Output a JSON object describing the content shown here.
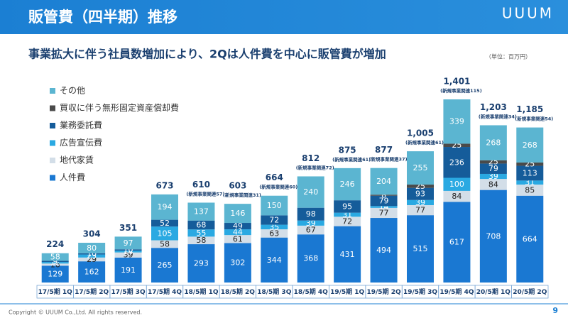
{
  "header": {
    "title": "販管費（四半期）推移",
    "logo": "UUUM"
  },
  "chart_data": {
    "type": "bar",
    "stacked": true,
    "title": "事業拡大に伴う社員数増加により、2Qは人件費を中心に販管費が増加",
    "unit_label": "（単位：百万円）",
    "categories": [
      "17/5期 1Q",
      "17/5期 2Q",
      "17/5期 3Q",
      "17/5期 4Q",
      "18/5期 1Q",
      "18/5期 2Q",
      "18/5期 3Q",
      "18/5期 4Q",
      "19/5期 1Q",
      "19/5期 2Q",
      "19/5期 3Q",
      "19/5期 4Q",
      "20/5期 1Q",
      "20/5期 2Q"
    ],
    "series": [
      {
        "name": "人件費",
        "color": "#1a78d2",
        "values": [
          129,
          162,
          191,
          265,
          293,
          302,
          344,
          368,
          431,
          494,
          515,
          617,
          708,
          664
        ]
      },
      {
        "name": "地代家賃",
        "color": "#d3dee8",
        "values": [
          16,
          29,
          39,
          58,
          58,
          61,
          63,
          67,
          72,
          77,
          77,
          84,
          84,
          85
        ]
      },
      {
        "name": "広告宣伝費",
        "color": "#2aa9e2",
        "values": [
          12,
          23,
          14,
          105,
          55,
          44,
          35,
          39,
          31,
          14,
          39,
          100,
          39,
          31
        ]
      },
      {
        "name": "業務委託費",
        "color": "#155c9a",
        "values": [
          9,
          10,
          10,
          52,
          68,
          49,
          72,
          98,
          95,
          79,
          93,
          236,
          79,
          113
        ]
      },
      {
        "name": "買収に伴う無形固定資産償却費",
        "color": "#4a4a4a",
        "values": [
          null,
          null,
          null,
          null,
          null,
          null,
          null,
          null,
          null,
          8,
          25,
          25,
          25,
          25
        ]
      },
      {
        "name": "その他",
        "color": "#5bb5d1",
        "values": [
          58,
          80,
          97,
          194,
          137,
          146,
          150,
          240,
          246,
          204,
          255,
          339,
          268,
          268
        ]
      }
    ],
    "total_labels": [
      "224",
      "304",
      "351",
      "673",
      "610",
      "603",
      "664",
      "812",
      "875",
      "877",
      "1,005",
      "1,401",
      "1,203",
      "1,185"
    ],
    "annotations": [
      null,
      null,
      null,
      null,
      "(新規事業関連57)",
      "(新規事業関連31)",
      "(新規事業関連60)",
      "(新規事業関連72)",
      "(新規事業関連61)",
      "(新規事業関連37)",
      "(新規事業関連61)",
      "(新規事業関連115)",
      "(新規事業関連34)",
      "(新規事業関連54)"
    ]
  },
  "footer": {
    "copyright": "Copyright © UUUM Co.,Ltd. All rights reserved.",
    "page": "9"
  }
}
